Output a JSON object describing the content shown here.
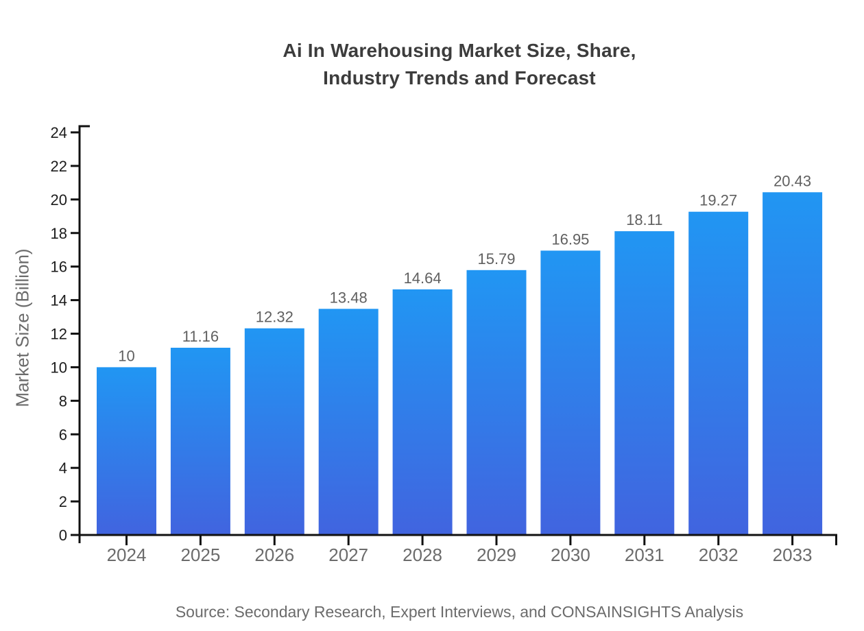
{
  "title": {
    "line1": "Ai In Warehousing Market Size, Share,",
    "line2": "Industry Trends and Forecast"
  },
  "source": "Source: Secondary Research, Expert Interviews, and CONSAINSIGHTS Analysis",
  "chart_data": {
    "type": "bar",
    "title": "Ai In Warehousing Market Size, Share, Industry Trends and Forecast",
    "categories": [
      "2024",
      "2025",
      "2026",
      "2027",
      "2028",
      "2029",
      "2030",
      "2031",
      "2032",
      "2033"
    ],
    "values": [
      10,
      11.16,
      12.32,
      13.48,
      14.64,
      15.79,
      16.95,
      18.11,
      19.27,
      20.43
    ],
    "value_labels": [
      "10",
      "11.16",
      "12.32",
      "13.48",
      "14.64",
      "15.79",
      "16.95",
      "18.11",
      "19.27",
      "20.43"
    ],
    "xlabel": "",
    "ylabel": "Market Size (Billion)",
    "ylim": [
      0,
      24
    ],
    "ytick_step": 2,
    "ytick_labels": [
      "0",
      "2",
      "4",
      "6",
      "8",
      "10",
      "12",
      "14",
      "16",
      "18",
      "20",
      "22",
      "24"
    ],
    "grid": false,
    "legend": "none",
    "colors": {
      "bar_gradient_top": "#2196f3",
      "bar_gradient_bottom": "#4164df",
      "axis": "#111111",
      "title_text": "#3c3c3c",
      "y_tick_text": "#1c1c1c",
      "x_tick_text": "#6b6b6b",
      "value_label_text": "#606060",
      "y_axis_title_text": "#6b6b6b",
      "source_text": "#6b6b6b",
      "background": "#ffffff"
    }
  }
}
